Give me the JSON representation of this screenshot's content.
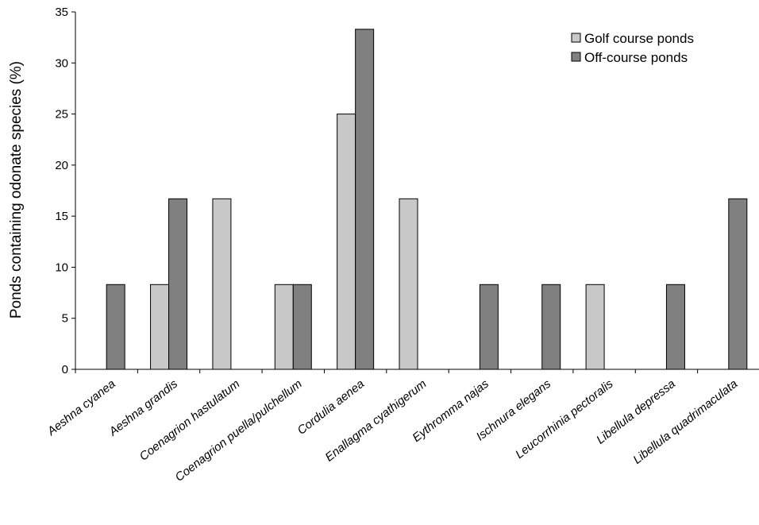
{
  "chart_data": {
    "type": "bar",
    "title": "",
    "xlabel": "",
    "ylabel": "Ponds containing odonate species (%)",
    "ylim": [
      0,
      35
    ],
    "yticks": [
      0,
      5,
      10,
      15,
      20,
      25,
      30,
      35
    ],
    "grid": false,
    "legend_position": "top-right",
    "categories": [
      "Aeshna cyanea",
      "Aeshna grandis",
      "Coenagrion hastulatum",
      "Coenagrion puella/pulchellum",
      "Cordulia aenea",
      "Enallagma cyathigerum",
      "Eythromma najas",
      "Ischnura elegans",
      "Leucorrhinia pectoralis",
      "Libellula depressa",
      "Libellula quadrimaculata"
    ],
    "series": [
      {
        "name": "Golf course ponds",
        "color": "#c8c8c8",
        "values": [
          0,
          8.3,
          16.7,
          8.3,
          25,
          16.7,
          0,
          0,
          8.3,
          0,
          0
        ]
      },
      {
        "name": "Off-course ponds",
        "color": "#808080",
        "values": [
          8.3,
          16.7,
          0,
          8.3,
          33.3,
          0,
          8.3,
          8.3,
          0,
          8.3,
          16.7
        ]
      }
    ]
  }
}
